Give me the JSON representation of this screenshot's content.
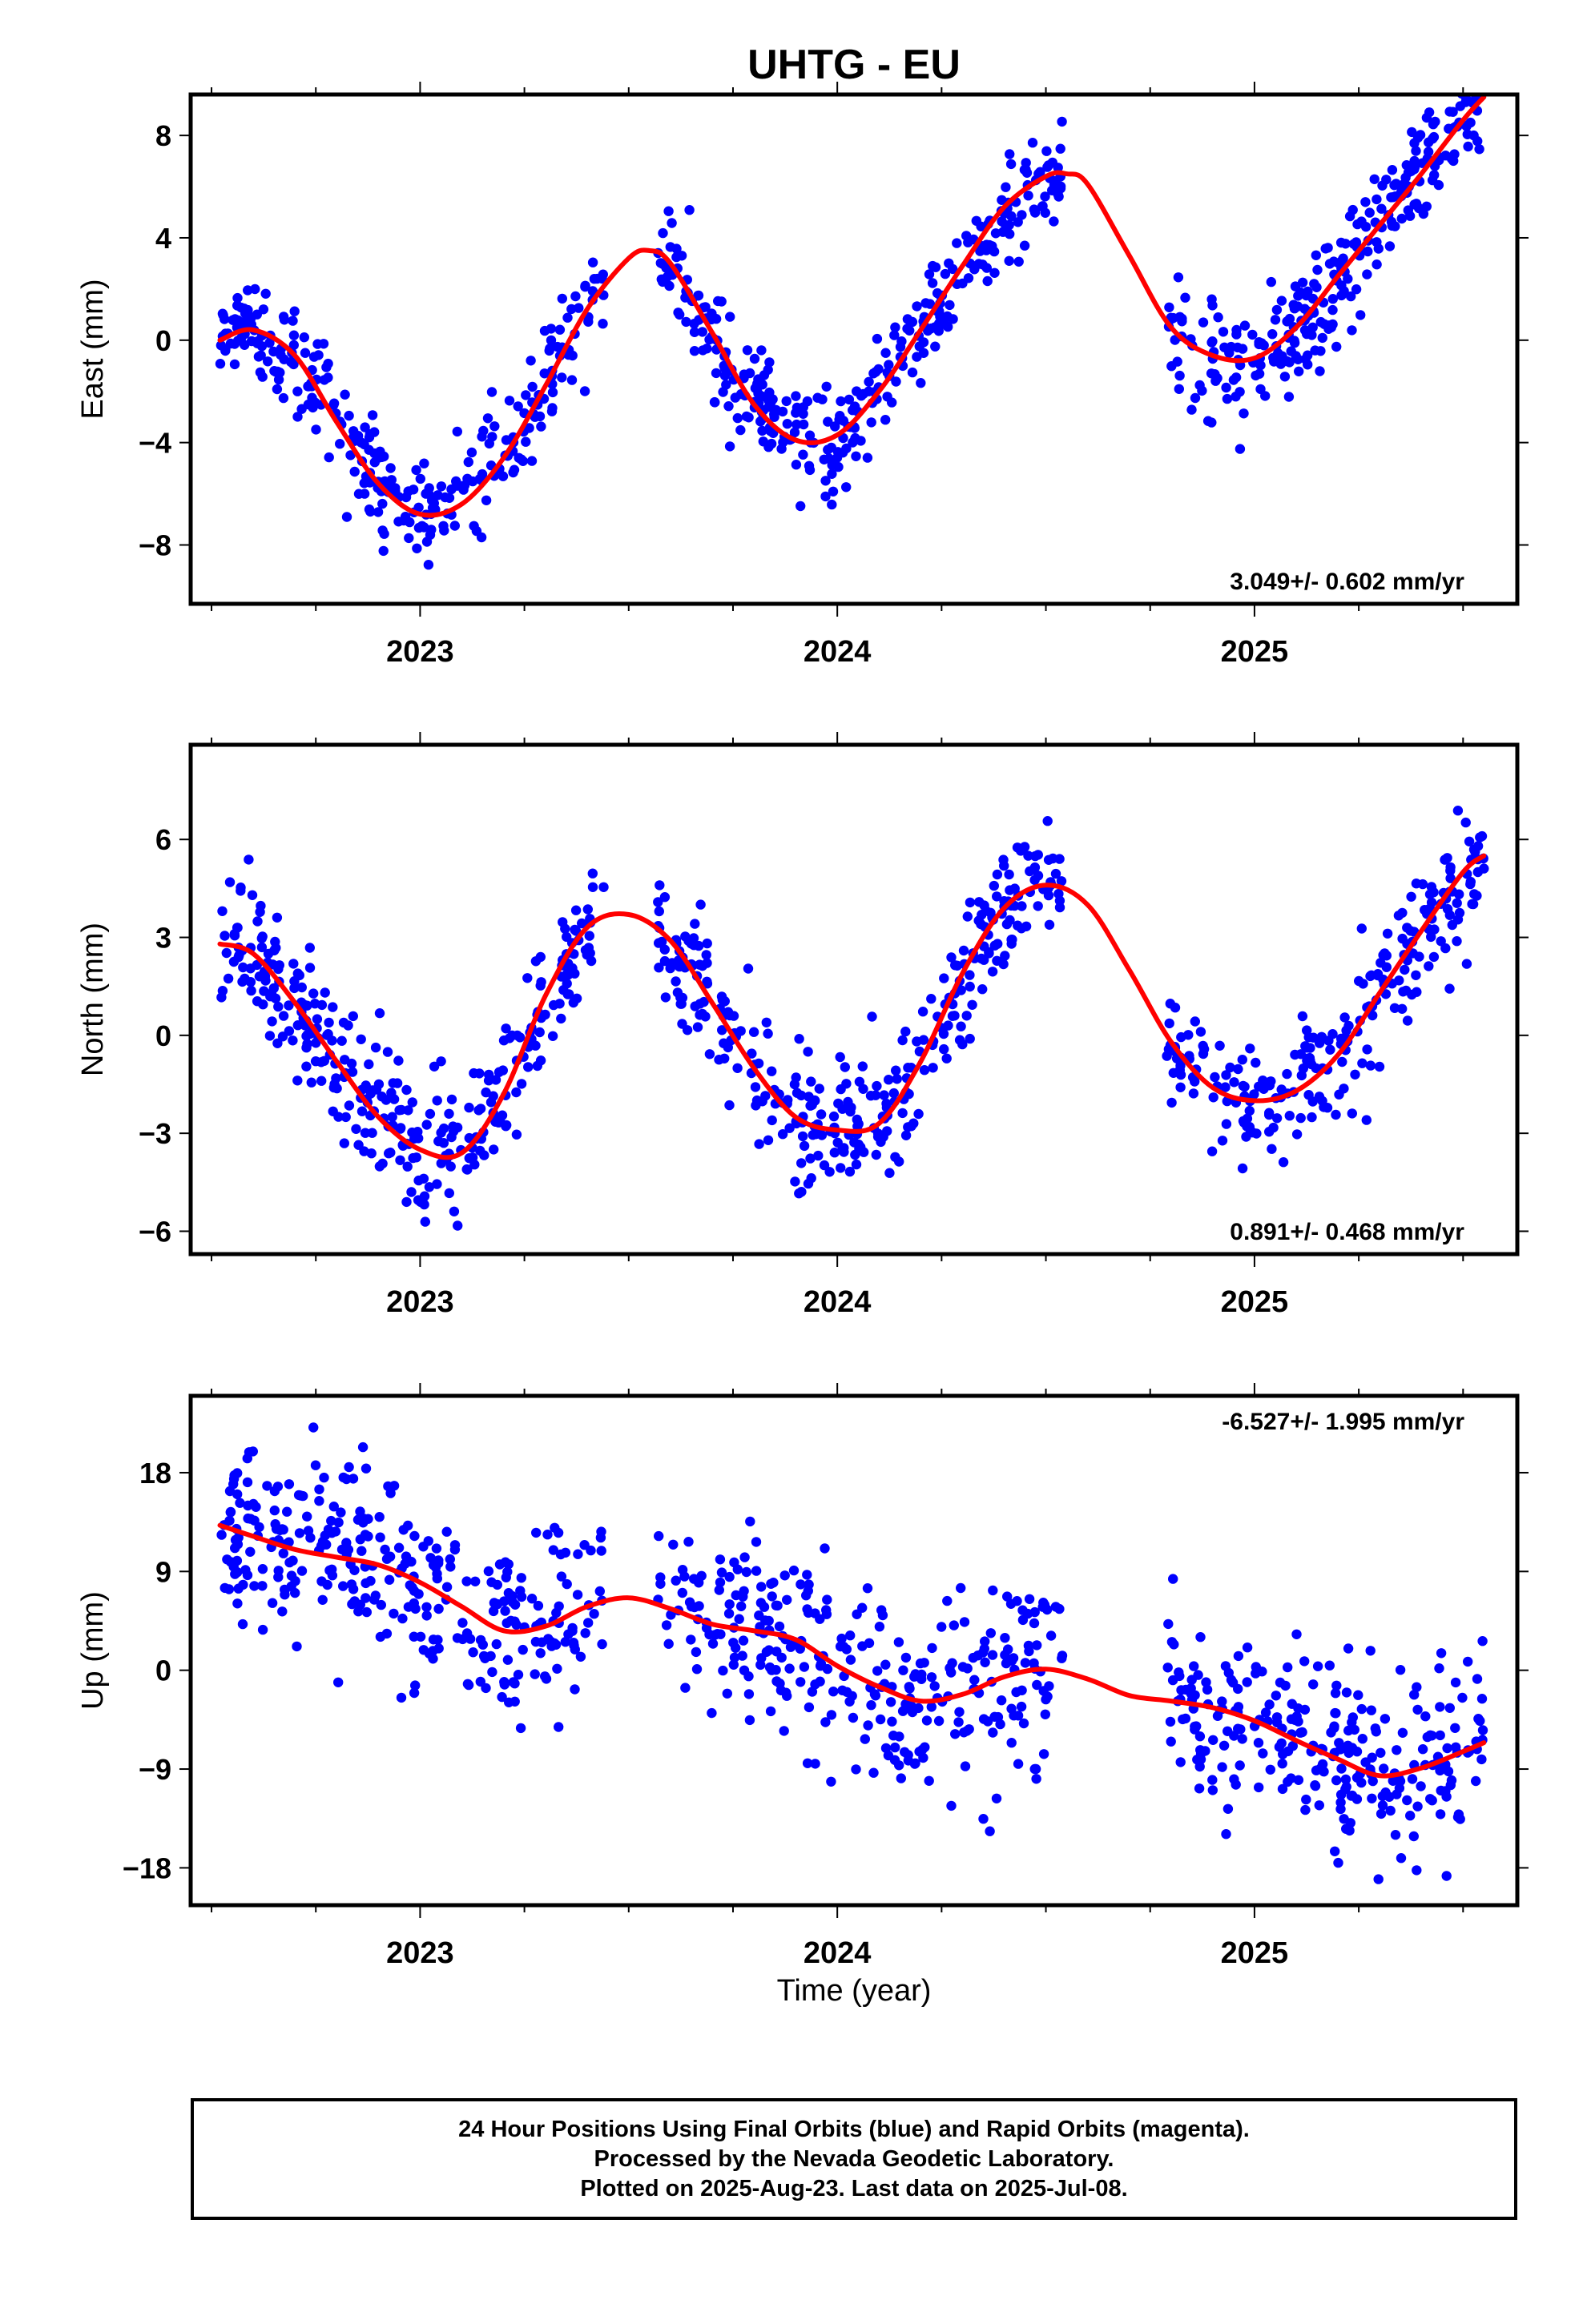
{
  "title": "UHTG - EU",
  "xlabel": "Time (year)",
  "colors": {
    "points": "#0000ff",
    "fit": "#ff0000",
    "frame": "#000000"
  },
  "footer": {
    "line1": "24 Hour Positions Using Final Orbits (blue) and Rapid Orbits (magenta).",
    "line2": "Processed by the Nevada Geodetic Laboratory.",
    "line3": "Plotted on 2025-Aug-23. Last data on 2025-Jul-08."
  },
  "chart_data": [
    {
      "type": "scatter",
      "ylabel": "East (mm)",
      "xlim": [
        2022.45,
        2025.63
      ],
      "ylim": [
        -10.3,
        9.6
      ],
      "xticks": [
        2023,
        2024,
        2025
      ],
      "yticks": [
        -8,
        -4,
        0,
        4,
        8
      ],
      "rate_label": "3.049+/- 0.602 mm/yr",
      "rate_position": "bottom-right",
      "fit_curve": {
        "x": [
          2022.52,
          2022.6,
          2022.7,
          2022.8,
          2022.9,
          2023.0,
          2023.1,
          2023.2,
          2023.3,
          2023.4,
          2023.5,
          2023.55,
          2023.6,
          2023.7,
          2023.8,
          2023.9,
          2024.0,
          2024.1,
          2024.2,
          2024.3,
          2024.4,
          2024.5,
          2024.55,
          2024.6,
          2024.7,
          2024.8,
          2024.9,
          2025.0,
          2025.1,
          2025.2,
          2025.3,
          2025.4,
          2025.5,
          2025.55
        ],
        "y": [
          0.0,
          0.4,
          -0.6,
          -3.2,
          -5.6,
          -6.8,
          -6.4,
          -4.6,
          -1.8,
          1.2,
          3.2,
          3.5,
          3.0,
          0.3,
          -2.5,
          -3.9,
          -3.7,
          -2.0,
          0.4,
          2.9,
          5.2,
          6.4,
          6.5,
          6.1,
          3.3,
          0.5,
          -0.6,
          -0.7,
          0.5,
          2.5,
          4.5,
          6.5,
          8.6,
          9.5
        ]
      },
      "scatter_model": {
        "segments": [
          [
            2022.52,
            2023.44
          ],
          [
            2023.57,
            2024.54
          ],
          [
            2024.79,
            2025.55
          ]
        ],
        "noise_sd": 1.1,
        "n_points": 900
      }
    },
    {
      "type": "scatter",
      "ylabel": "North (mm)",
      "xlim": [
        2022.45,
        2025.63
      ],
      "ylim": [
        -6.7,
        8.9
      ],
      "xticks": [
        2023,
        2024,
        2025
      ],
      "yticks": [
        -6,
        -3,
        0,
        3,
        6
      ],
      "rate_label": "0.891+/- 0.468 mm/yr",
      "rate_position": "bottom-right",
      "fit_curve": {
        "x": [
          2022.52,
          2022.6,
          2022.7,
          2022.8,
          2022.9,
          2023.0,
          2023.1,
          2023.2,
          2023.3,
          2023.4,
          2023.5,
          2023.6,
          2023.7,
          2023.8,
          2023.9,
          2024.0,
          2024.1,
          2024.2,
          2024.3,
          2024.4,
          2024.5,
          2024.6,
          2024.7,
          2024.8,
          2024.9,
          2025.0,
          2025.1,
          2025.2,
          2025.3,
          2025.4,
          2025.5,
          2025.55
        ],
        "y": [
          2.8,
          2.5,
          1.0,
          -0.8,
          -2.5,
          -3.5,
          -3.6,
          -1.8,
          1.2,
          3.3,
          3.7,
          2.9,
          1.0,
          -1.0,
          -2.5,
          -2.9,
          -2.7,
          -0.8,
          1.9,
          3.9,
          4.6,
          4.0,
          2.0,
          -0.2,
          -1.6,
          -2.0,
          -1.7,
          -0.6,
          1.3,
          3.2,
          5.0,
          5.5
        ]
      },
      "scatter_model": {
        "segments": [
          [
            2022.52,
            2023.44
          ],
          [
            2023.57,
            2024.54
          ],
          [
            2024.79,
            2025.55
          ]
        ],
        "noise_sd": 1.0,
        "n_points": 900
      }
    },
    {
      "type": "scatter",
      "ylabel": "Up (mm)",
      "xlim": [
        2022.45,
        2025.63
      ],
      "ylim": [
        -21.4,
        25.0
      ],
      "xticks": [
        2023,
        2024,
        2025
      ],
      "yticks": [
        -18,
        -9,
        0,
        9,
        18
      ],
      "rate_label": "-6.527+/- 1.995 mm/yr",
      "rate_position": "top-right",
      "fit_curve": {
        "x": [
          2022.52,
          2022.6,
          2022.7,
          2022.8,
          2022.9,
          2023.0,
          2023.1,
          2023.2,
          2023.3,
          2023.4,
          2023.5,
          2023.6,
          2023.7,
          2023.8,
          2023.9,
          2024.0,
          2024.1,
          2024.2,
          2024.3,
          2024.4,
          2024.5,
          2024.6,
          2024.7,
          2024.8,
          2024.9,
          2025.0,
          2025.1,
          2025.2,
          2025.3,
          2025.4,
          2025.5,
          2025.55
        ],
        "y": [
          13.2,
          12.2,
          11.0,
          10.3,
          9.6,
          8.0,
          5.8,
          3.6,
          4.0,
          5.8,
          6.6,
          5.6,
          4.2,
          3.6,
          2.8,
          0.4,
          -1.5,
          -2.8,
          -2.2,
          -0.6,
          0.1,
          -0.8,
          -2.3,
          -2.8,
          -3.4,
          -4.6,
          -6.4,
          -8.1,
          -9.6,
          -8.9,
          -7.4,
          -6.6
        ]
      },
      "scatter_model": {
        "segments": [
          [
            2022.52,
            2023.44
          ],
          [
            2023.57,
            2024.54
          ],
          [
            2024.79,
            2025.55
          ]
        ],
        "noise_sd": 4.0,
        "n_points": 900
      }
    }
  ]
}
